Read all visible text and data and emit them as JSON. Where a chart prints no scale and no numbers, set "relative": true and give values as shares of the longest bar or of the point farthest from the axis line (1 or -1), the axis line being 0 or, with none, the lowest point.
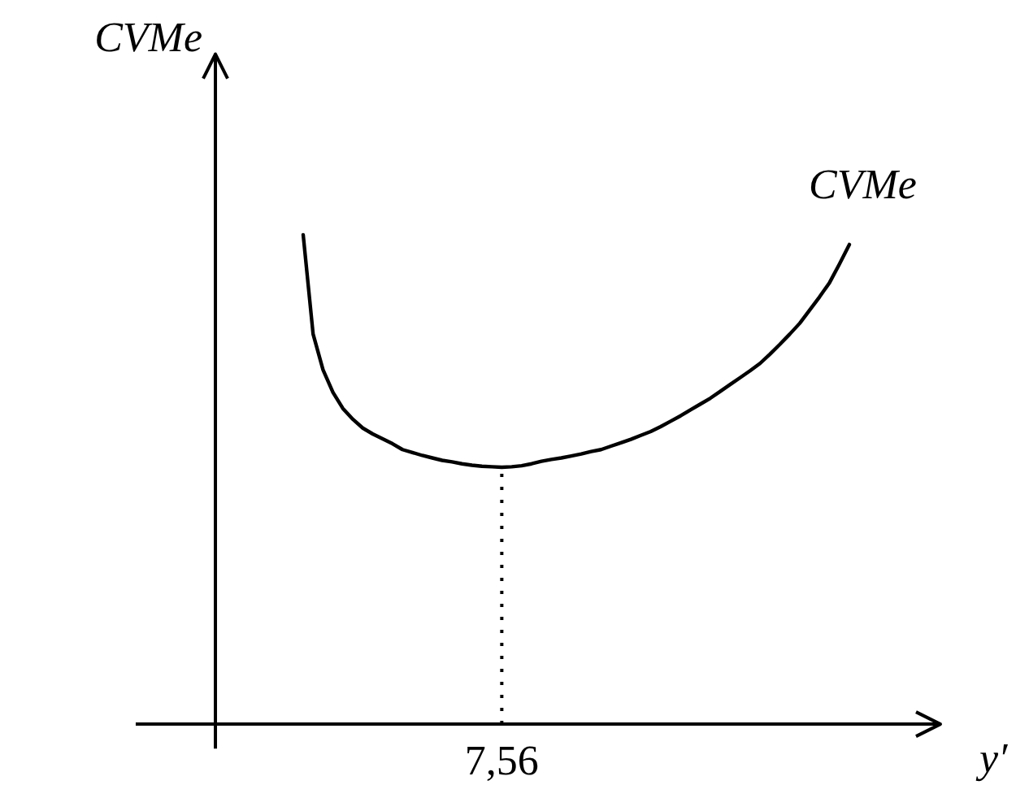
{
  "chart_data": {
    "type": "line",
    "xlabel": "y′",
    "ylabel": "CVMe",
    "relative": true,
    "categories": [
      null,
      null,
      null,
      null,
      null,
      null,
      null,
      null,
      null,
      null,
      null,
      null,
      null,
      null,
      null,
      null,
      null,
      null,
      null,
      null,
      null,
      null,
      null,
      null,
      null,
      null,
      null,
      null,
      null,
      null,
      null,
      null,
      null,
      null,
      null,
      null,
      null,
      null,
      null,
      null,
      null,
      null,
      null,
      null,
      null,
      null,
      null,
      null,
      null,
      null,
      null,
      null,
      null,
      null,
      null,
      null
    ],
    "series": [
      {
        "name": "CVMe",
        "color": "#000000",
        "values": [
          1.0,
          0.797,
          0.724,
          0.678,
          0.645,
          0.623,
          0.605,
          0.593,
          0.583,
          0.573,
          0.561,
          0.555,
          0.549,
          0.544,
          0.539,
          0.536,
          0.532,
          0.529,
          0.527,
          0.526,
          0.525,
          0.526,
          0.528,
          0.532,
          0.537,
          0.541,
          0.544,
          0.548,
          0.552,
          0.557,
          0.561,
          0.568,
          0.575,
          0.582,
          0.59,
          0.598,
          0.608,
          0.619,
          0.63,
          0.642,
          0.654,
          0.666,
          0.68,
          0.694,
          0.708,
          0.722,
          0.737,
          0.756,
          0.776,
          0.797,
          0.819,
          0.846,
          0.873,
          0.902,
          0.94,
          0.98
        ]
      }
    ],
    "annotations": [
      {
        "text": "7,56",
        "y": 0.525
      }
    ]
  }
}
